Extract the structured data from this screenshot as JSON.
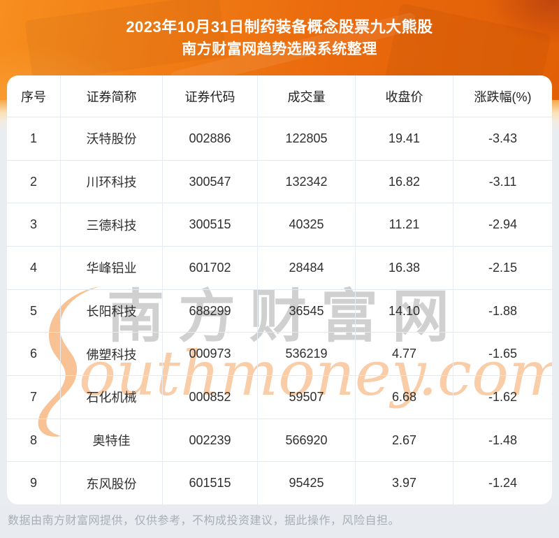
{
  "header": {
    "title_line1": "2023年10月31日制药装备概念股票九大熊股",
    "title_line2": "南方财富网趋势选股系统整理"
  },
  "chart_data": {
    "type": "table",
    "title": "2023年10月31日制药装备概念股票九大熊股",
    "subtitle": "南方财富网趋势选股系统整理",
    "columns": [
      "序号",
      "证券简称",
      "证券代码",
      "成交量",
      "收盘价",
      "涨跌幅(%)"
    ],
    "rows": [
      [
        "1",
        "沃特股份",
        "002886",
        "122805",
        "19.41",
        "-3.43"
      ],
      [
        "2",
        "川环科技",
        "300547",
        "132342",
        "16.82",
        "-3.11"
      ],
      [
        "3",
        "三德科技",
        "300515",
        "40325",
        "11.21",
        "-2.94"
      ],
      [
        "4",
        "华峰铝业",
        "601702",
        "28484",
        "16.38",
        "-2.15"
      ],
      [
        "5",
        "长阳科技",
        "688299",
        "36545",
        "14.10",
        "-1.88"
      ],
      [
        "6",
        "佛塑科技",
        "000973",
        "536219",
        "4.77",
        "-1.65"
      ],
      [
        "7",
        "石化机械",
        "000852",
        "59507",
        "6.68",
        "-1.62"
      ],
      [
        "8",
        "奥特佳",
        "002239",
        "566920",
        "2.67",
        "-1.48"
      ],
      [
        "9",
        "东风股份",
        "601515",
        "95425",
        "3.97",
        "-1.24"
      ]
    ]
  },
  "watermark": {
    "cn": "南方财富网",
    "en": "outhmoney.com"
  },
  "footer": {
    "disclaimer": "数据由南方财富网提供，仅供参考，不构成投资建议，据此操作，风险自担。"
  },
  "colors": {
    "header_orange_start": "#f78e1e",
    "header_orange_end": "#e25f06",
    "page_background": "#e9edf2",
    "card_background": "#ffffff",
    "divider": "#e4e9f0",
    "cell_text": "#2f2f2f",
    "footer_text": "#a8aeb6",
    "watermark_orange": "#f49c52",
    "watermark_gray": "#8a8a8a"
  }
}
